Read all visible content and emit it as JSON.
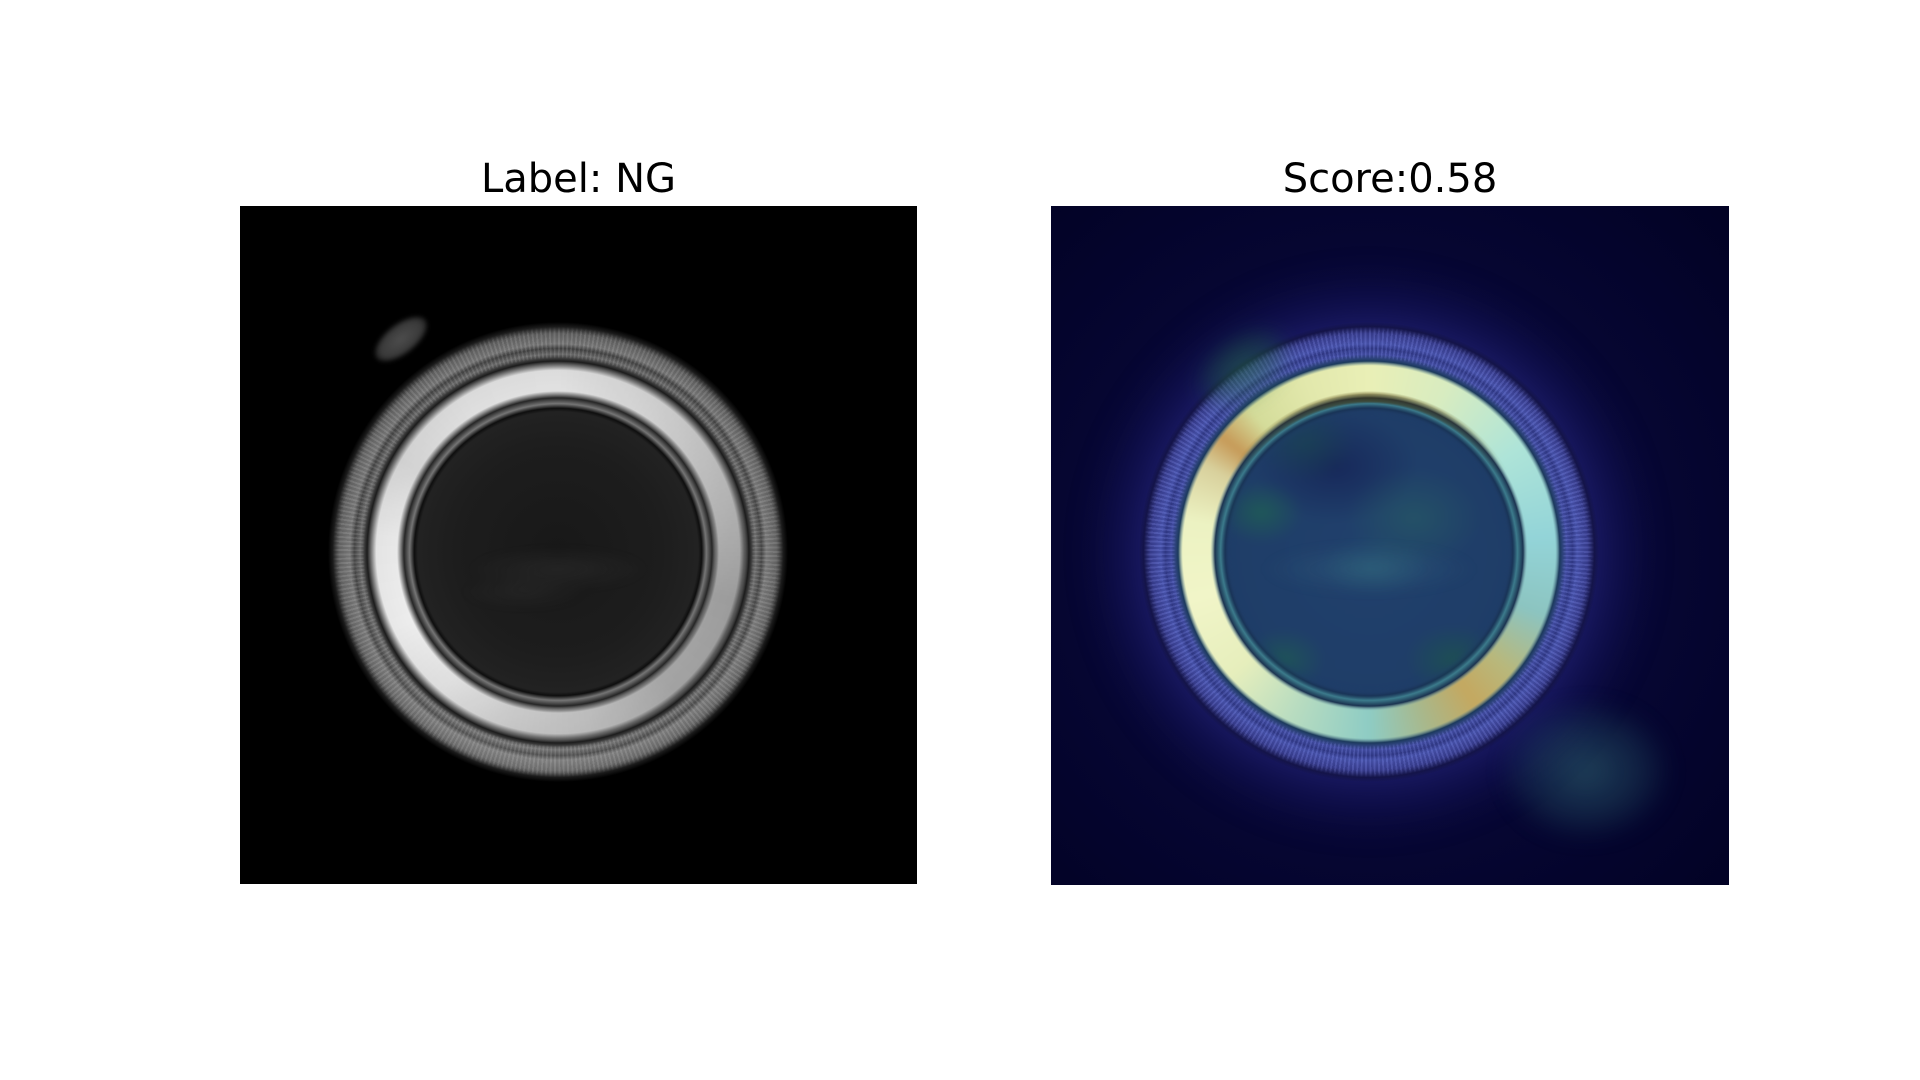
{
  "figure": {
    "kind": "matplotlib anomaly-detection result figure",
    "background_color": "#ffffff",
    "panels": {
      "left": {
        "title": "Label: NG",
        "label_value": "NG",
        "content": "grayscale photograph of a circular metal cap with a small rim defect at the upper-left, on a black background",
        "background_color": "#000000"
      },
      "right": {
        "title": "Score:0.58",
        "score_value": 0.58,
        "content": "anomaly heatmap (jet-style colormap) overlaid on the same cap image; activation concentrated on the cap ring",
        "background_color": "#04042a"
      }
    }
  },
  "colors": {
    "title_text": "#000000",
    "left_image_background": "#000000",
    "cap_glossy_ring": "#f0f0f0",
    "cap_inner_disc": "#1d1d1d",
    "heatmap_background": "#04042a",
    "heatmap_low_blue": "#1e3c66",
    "heatmap_rim_violet": "#4a55b0",
    "heatmap_cyan": "#a8ded8",
    "heatmap_high_yellow": "#f1f5c8",
    "heatmap_tan": "#c4a860",
    "heatmap_defect_green": "#2f7a50"
  },
  "chart_data": [
    {
      "type": "image",
      "title": "Label: NG",
      "annotation": "NG",
      "description": "Inspection sample: grayscale top view of a round metal cap; bright glossy ring brightest at top and lower-left, dark inner disc, speckled outer rim, small protruding defect bump at ~10:30 position"
    },
    {
      "type": "heatmap",
      "title": "Score:0.58",
      "score": 0.58,
      "colormap": "jet-like, dark navy (low) to pale yellow (high)",
      "regions": [
        {
          "location": "upper ring arc (10-2 o'clock)",
          "intensity": "high",
          "color": "#e9efb6"
        },
        {
          "location": "lower-left ring arc (7-9 o'clock)",
          "intensity": "high",
          "color": "#f1f5c8"
        },
        {
          "location": "lower-right ring arc (4-5 o'clock)",
          "intensity": "medium-high",
          "color": "#c4a860"
        },
        {
          "location": "right ring arc (2-3 o'clock)",
          "intensity": "medium",
          "color": "#93d4d8"
        },
        {
          "location": "upper-left defect bump outside rim",
          "intensity": "medium",
          "color": "#2f7a50"
        },
        {
          "location": "inner disc",
          "intensity": "low",
          "color": "#20406c"
        },
        {
          "location": "outer rim",
          "intensity": "low-medium",
          "color": "#4a55b0"
        },
        {
          "location": "background",
          "intensity": "minimal",
          "color": "#04042a"
        }
      ]
    }
  ]
}
